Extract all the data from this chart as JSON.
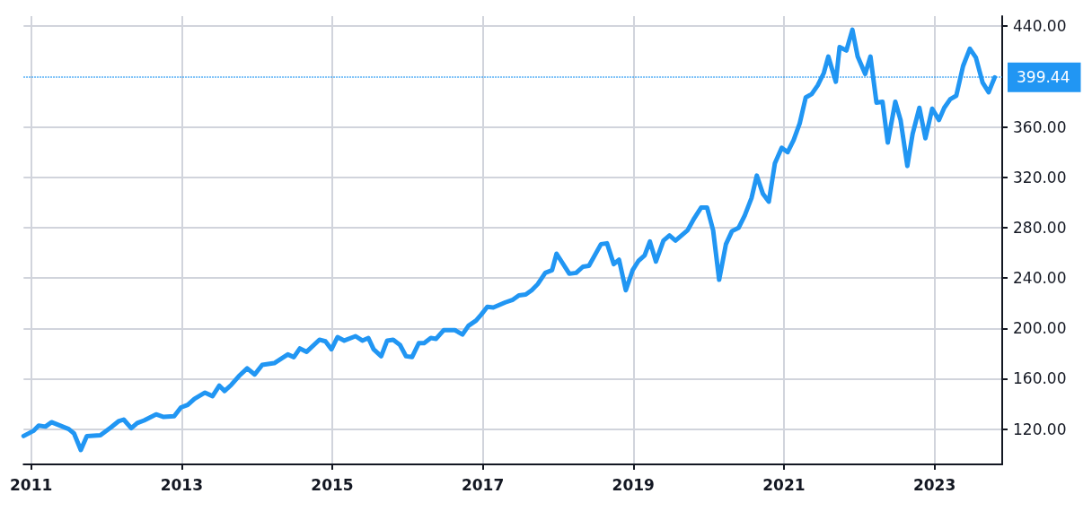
{
  "chart_data": {
    "type": "line",
    "x": [
      2010.9,
      2011.03,
      2011.1,
      2011.19,
      2011.27,
      2011.36,
      2011.5,
      2011.57,
      2011.66,
      2011.74,
      2011.92,
      2012.06,
      2012.16,
      2012.23,
      2012.33,
      2012.41,
      2012.5,
      2012.66,
      2012.76,
      2012.9,
      2012.99,
      2013.08,
      2013.17,
      2013.31,
      2013.41,
      2013.5,
      2013.57,
      2013.66,
      2013.76,
      2013.87,
      2013.97,
      2014.07,
      2014.23,
      2014.34,
      2014.41,
      2014.49,
      2014.57,
      2014.66,
      2014.83,
      2014.91,
      2014.99,
      2015.07,
      2015.16,
      2015.31,
      2015.4,
      2015.48,
      2015.55,
      2015.65,
      2015.73,
      2015.81,
      2015.9,
      2015.98,
      2016.06,
      2016.15,
      2016.22,
      2016.31,
      2016.38,
      2016.48,
      2016.63,
      2016.73,
      2016.81,
      2016.91,
      2016.98,
      2017.06,
      2017.14,
      2017.3,
      2017.4,
      2017.48,
      2017.57,
      2017.65,
      2017.73,
      2017.83,
      2017.92,
      2017.98,
      2018.15,
      2018.24,
      2018.33,
      2018.41,
      2018.57,
      2018.65,
      2018.74,
      2018.81,
      2018.9,
      2018.99,
      2019.07,
      2019.15,
      2019.22,
      2019.3,
      2019.4,
      2019.48,
      2019.56,
      2019.64,
      2019.72,
      2019.81,
      2019.9,
      2019.98,
      2020.06,
      2020.14,
      2020.23,
      2020.31,
      2020.4,
      2020.48,
      2020.57,
      2020.64,
      2020.72,
      2020.8,
      2020.88,
      2020.97,
      2021.05,
      2021.13,
      2021.21,
      2021.29,
      2021.37,
      2021.45,
      2021.53,
      2021.59,
      2021.69,
      2021.74,
      2021.83,
      2021.91,
      2021.98,
      2022.08,
      2022.15,
      2022.23,
      2022.31,
      2022.38,
      2022.48,
      2022.55,
      2022.64,
      2022.71,
      2022.8,
      2022.88,
      2022.97,
      2023.06,
      2023.13,
      2023.21,
      2023.29,
      2023.38,
      2023.47,
      2023.55,
      2023.64,
      2023.72,
      2023.8
    ],
    "series": [
      {
        "color": "#2196f3",
        "values": [
          114.5,
          118.6,
          122.8,
          122,
          125.5,
          123.4,
          120,
          116.6,
          103.4,
          114.5,
          115.2,
          121.4,
          126.2,
          127.6,
          120.7,
          124.8,
          126.9,
          131.7,
          129.7,
          130.3,
          137.2,
          139.3,
          144.1,
          149,
          146.2,
          154.5,
          150.3,
          155.2,
          162.1,
          168.3,
          163.4,
          171,
          172.4,
          176.6,
          179.3,
          177.2,
          184.1,
          181.4,
          191,
          189.7,
          183.4,
          193.1,
          190.3,
          193.8,
          190.3,
          192.4,
          183.4,
          177.9,
          190.3,
          191,
          186.9,
          177.9,
          177.2,
          188.3,
          188.3,
          192.4,
          191.7,
          198.6,
          198.6,
          195.2,
          202.1,
          206.2,
          211,
          217.2,
          216.6,
          220.7,
          222.8,
          226.2,
          226.9,
          230.3,
          235.2,
          244.1,
          246.2,
          259.3,
          243.4,
          244.1,
          249,
          249.7,
          266.9,
          267.6,
          251,
          254.5,
          230.3,
          246.2,
          253.8,
          258,
          269,
          253.1,
          269.7,
          273.8,
          269.7,
          273.8,
          277.9,
          287.6,
          295.9,
          295.9,
          277.9,
          238.6,
          266.9,
          277.2,
          280,
          289.7,
          303.6,
          321.4,
          307.1,
          300.7,
          331,
          343.4,
          340,
          349.7,
          362.8,
          383.4,
          386.2,
          393.1,
          402.8,
          415.9,
          395.9,
          423.4,
          420.7,
          437.2,
          415.9,
          402.1,
          415.9,
          379.3,
          380,
          347.6,
          380,
          365.5,
          329,
          354.5,
          375.2,
          351,
          374.5,
          365.5,
          375.2,
          382.1,
          384.8,
          408.3,
          422.1,
          415.2,
          395.2,
          387.6,
          399.4
        ]
      }
    ],
    "xlim": [
      2010.9,
      2023.9
    ],
    "xticks": [
      2011,
      2013,
      2015,
      2017,
      2019,
      2021,
      2023
    ],
    "ylim": [
      92,
      448
    ],
    "yticks": [
      {
        "value": 120,
        "label": "120.00"
      },
      {
        "value": 160,
        "label": "160.00"
      },
      {
        "value": 200,
        "label": "200.00"
      },
      {
        "value": 240,
        "label": "240.00"
      },
      {
        "value": 280,
        "label": "280.00"
      },
      {
        "value": 320,
        "label": "320.00"
      },
      {
        "value": 360,
        "label": "360.00"
      },
      {
        "value": 440,
        "label": "440.00"
      }
    ],
    "ref_lines": [
      {
        "axis": "y",
        "value": 399.44,
        "label": "399.44",
        "color": "#2196f3",
        "line_style": "dotted"
      }
    ],
    "grid": true,
    "marker": "none",
    "line_style": "solid"
  }
}
